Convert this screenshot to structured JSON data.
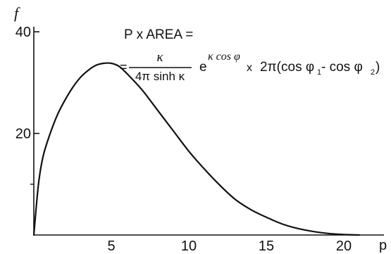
{
  "chart_data": {
    "type": "line",
    "ylabel": "f",
    "xlabel": "p",
    "xlim": [
      0,
      22
    ],
    "ylim": [
      0,
      41
    ],
    "x_ticks": [
      5,
      10,
      15,
      20
    ],
    "x_tick_labels": [
      "5",
      "10",
      "15",
      "20"
    ],
    "y_ticks": [
      20,
      40
    ],
    "y_tick_labels": [
      "20",
      "40"
    ],
    "y_minor_ticks": [
      10
    ],
    "grid": false,
    "colors": {
      "ink": "#111111"
    },
    "series": [
      {
        "x": [
          0,
          0.3,
          0.6,
          1,
          1.5,
          2,
          2.5,
          3,
          3.5,
          4,
          4.5,
          5,
          5.5,
          6,
          7,
          8,
          9,
          10,
          11,
          12,
          13,
          14,
          15,
          16,
          17,
          18,
          19,
          20,
          21
        ],
        "values": [
          0,
          10,
          15.5,
          19.5,
          23.5,
          26.5,
          29,
          31,
          32.4,
          33.4,
          33.8,
          33.8,
          33.2,
          31.8,
          28.5,
          24.5,
          20.5,
          16.5,
          13,
          9.8,
          7,
          5,
          3.5,
          2.2,
          1.3,
          0.7,
          0.3,
          0.1,
          0
        ]
      }
    ],
    "annotations": [
      {
        "id": "formula_line1",
        "text": "P x AREA  ="
      },
      {
        "id": "formula_eq2",
        "text": "="
      },
      {
        "id": "formula_numerator",
        "text": "κ"
      },
      {
        "id": "formula_denominator",
        "text": "4π sinh κ"
      },
      {
        "id": "formula_exp_base",
        "text": "e"
      },
      {
        "id": "formula_exponent",
        "text": "κ cos φ"
      },
      {
        "id": "formula_times",
        "text": "x"
      },
      {
        "id": "formula_tail",
        "text": "2π(cos φ"
      },
      {
        "id": "formula_sub1",
        "text": "1"
      },
      {
        "id": "formula_minus",
        "text": " - cos φ"
      },
      {
        "id": "formula_sub2",
        "text": "2"
      },
      {
        "id": "formula_close",
        "text": ")"
      }
    ]
  }
}
